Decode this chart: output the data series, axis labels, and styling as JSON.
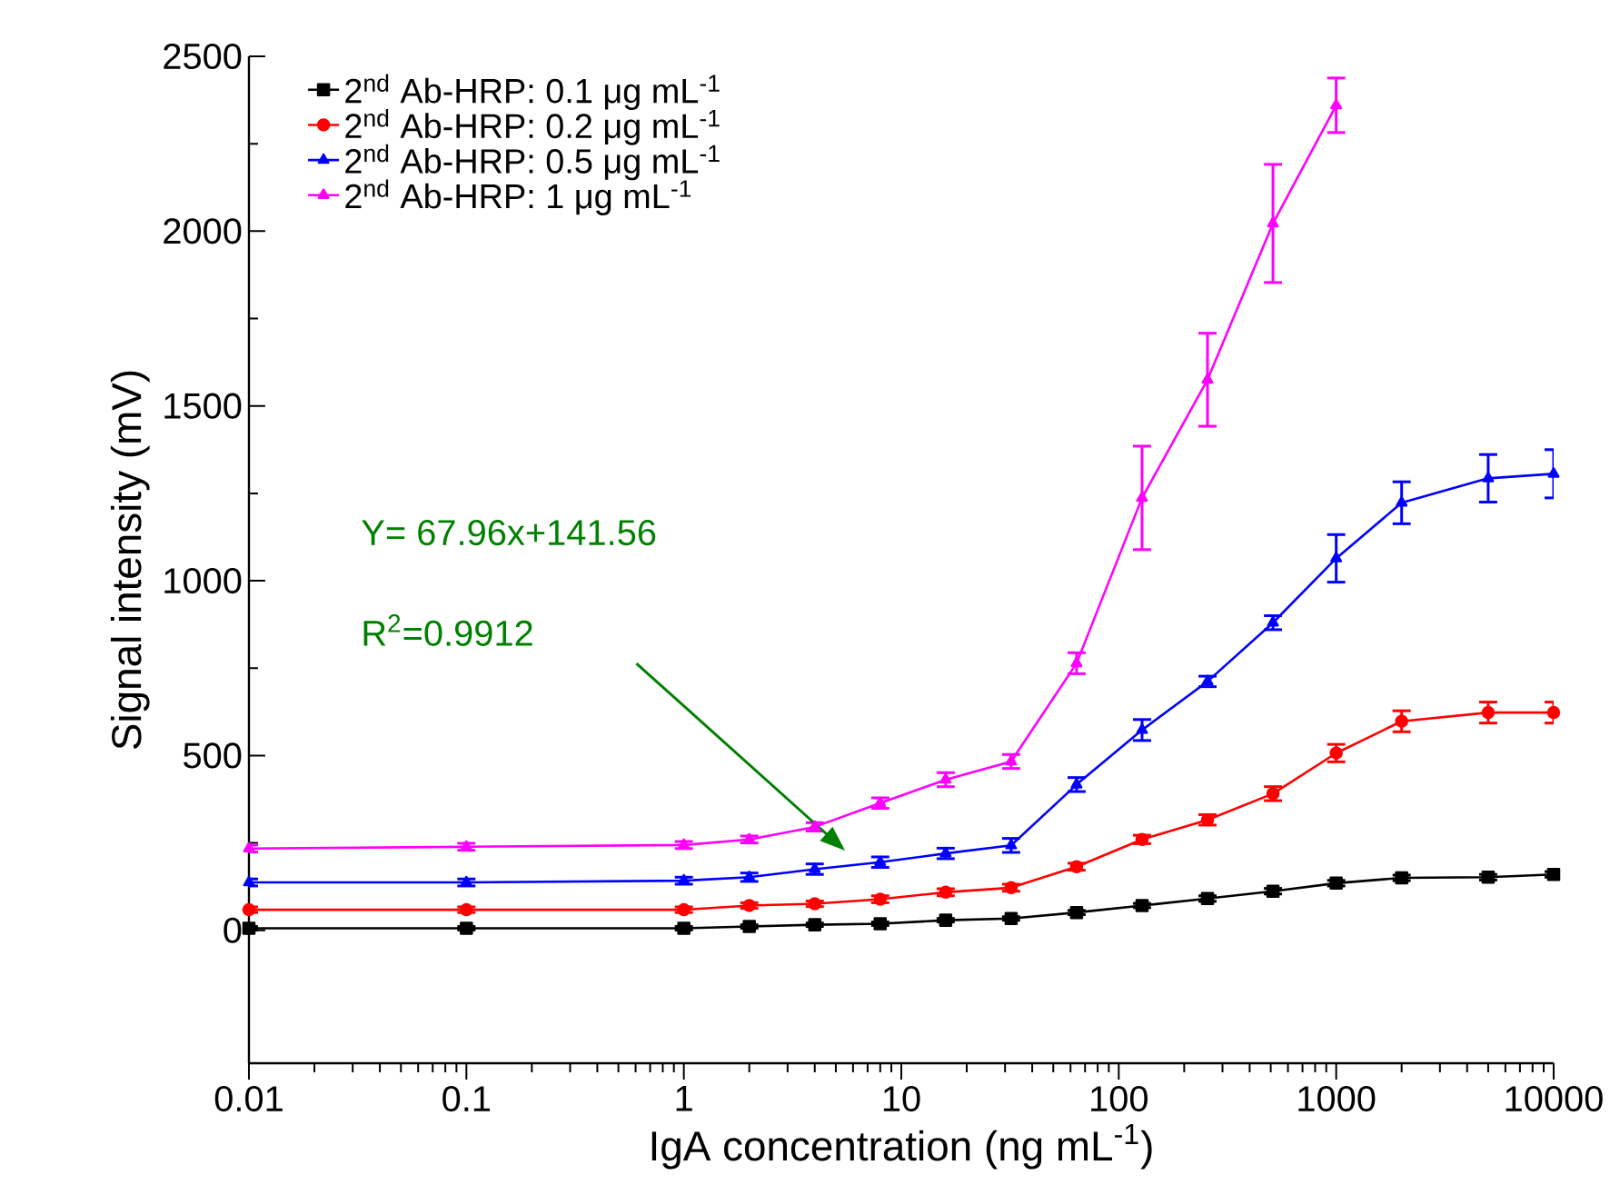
{
  "chart_data": {
    "type": "line",
    "xlabel": "IgA concentration (ng mL$^{-1}$)",
    "ylabel": "Signal intensity (mV)",
    "log": "x",
    "xlim": [
      0.01,
      10000
    ],
    "ylim": [
      -380,
      2500
    ],
    "xticks": [
      0.01,
      0.1,
      1,
      10,
      100,
      1000,
      10000
    ],
    "yticks": [
      0,
      500,
      1000,
      1500,
      2000,
      2500
    ],
    "grid": false,
    "legend": "top left",
    "line_style": "solid",
    "annotations": [
      "Y= 67.96x+141.56",
      "R$^{2}$=0.9912"
    ],
    "series": [
      {
        "name": "2$^{nd}$ Ab-HRP: 0.1 μg mL$^{-1}$",
        "color": "#000000",
        "marker": "square",
        "x": [
          0.01,
          0.1,
          1,
          2,
          4,
          8,
          16,
          32,
          64,
          128,
          256,
          512,
          1000,
          2000,
          5000,
          10000
        ],
        "values": [
          6,
          6,
          6,
          11,
          16,
          19,
          29,
          34,
          51,
          71,
          91,
          112,
          135,
          150,
          152,
          160
        ],
        "errors": [
          5,
          5,
          5,
          5,
          5,
          5,
          5,
          5,
          6,
          6,
          8,
          8,
          8,
          8,
          8,
          8
        ]
      },
      {
        "name": "2$^{nd}$ Ab-HRP: 0.2 μg mL$^{-1}$",
        "color": "#ff0000",
        "marker": "circle",
        "x": [
          0.01,
          0.1,
          1,
          2,
          4,
          8,
          16,
          32,
          64,
          128,
          256,
          512,
          1000,
          2000,
          5000,
          10000
        ],
        "values": [
          59,
          59,
          59,
          71,
          76,
          89,
          109,
          122,
          182,
          260,
          316,
          391,
          507,
          598,
          623,
          623
        ],
        "errors": [
          8,
          8,
          8,
          8,
          8,
          10,
          10,
          10,
          10,
          12,
          15,
          20,
          25,
          30,
          30,
          30
        ]
      },
      {
        "name": "2$^{nd}$ Ab-HRP: 0.5 μg mL$^{-1}$",
        "color": "#0000ff",
        "marker": "triangle",
        "x": [
          0.01,
          0.1,
          1,
          2,
          4,
          8,
          16,
          32,
          64,
          128,
          256,
          512,
          1000,
          2000,
          5000,
          10000
        ],
        "values": [
          137,
          137,
          142,
          152,
          175,
          195,
          220,
          243,
          417,
          573,
          712,
          880,
          1064,
          1223,
          1293,
          1306
        ],
        "errors": [
          10,
          10,
          10,
          12,
          15,
          15,
          15,
          20,
          20,
          30,
          15,
          20,
          68,
          60,
          68,
          69
        ]
      },
      {
        "name": "2$^{nd}$ Ab-HRP: 1 μg mL$^{-1}$",
        "color": "#ff00ff",
        "marker": "triangle",
        "x": [
          0.01,
          0.1,
          1,
          2,
          4,
          8,
          16,
          32,
          64,
          128,
          256,
          512,
          1000
        ],
        "values": [
          234,
          239,
          244,
          260,
          296,
          364,
          431,
          483,
          764,
          1237,
          1575,
          2022,
          2360
        ],
        "errors": [
          10,
          10,
          10,
          10,
          12,
          15,
          20,
          20,
          30,
          148,
          133,
          169,
          78
        ]
      }
    ]
  }
}
